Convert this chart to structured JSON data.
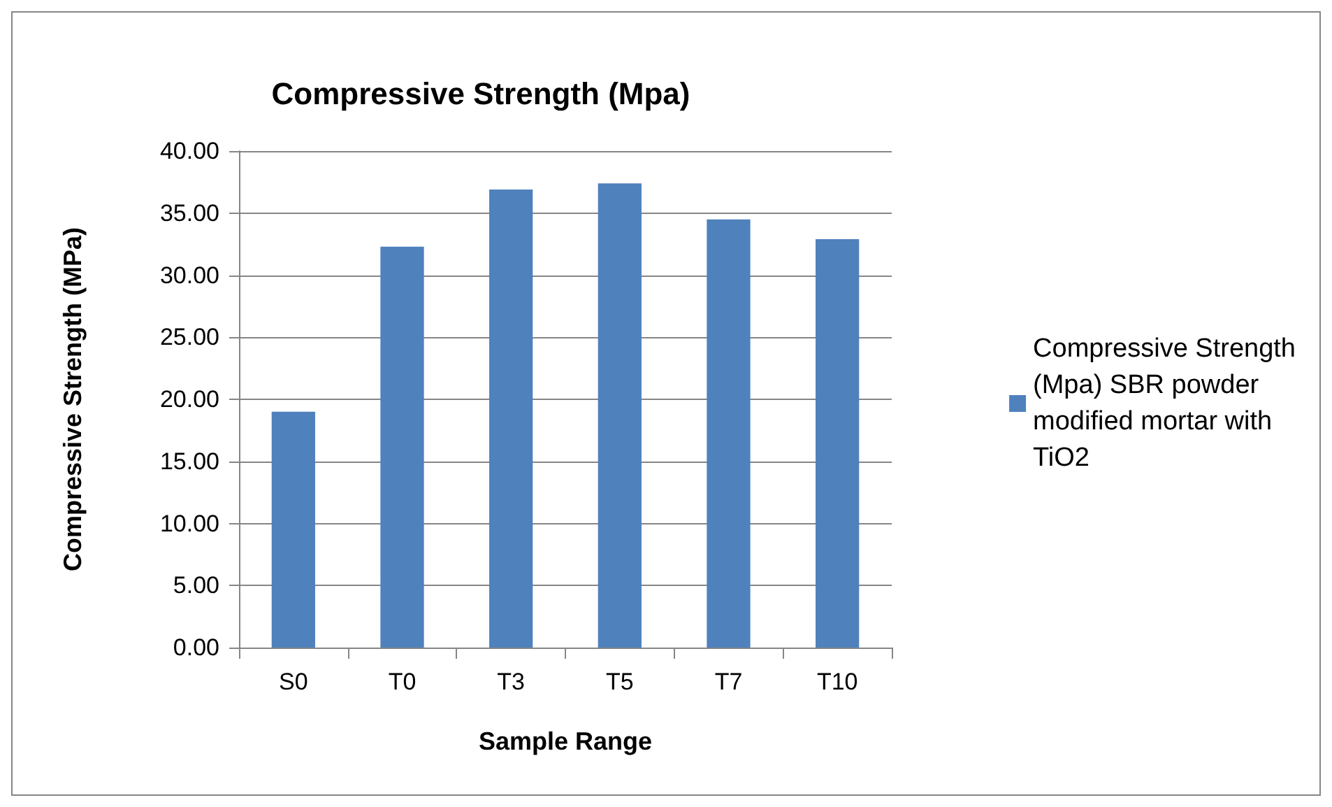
{
  "chart_data": {
    "type": "bar",
    "title": "Compressive Strength (Mpa)",
    "xlabel": "Sample Range",
    "ylabel": "Compressive Strength (MPa)",
    "categories": [
      "S0",
      "T0",
      "T3",
      "T5",
      "T7",
      "T10"
    ],
    "series": [
      {
        "name": "Compressive Strength (Mpa) SBR powder modified mortar with TiO2",
        "color": "#4f81bd",
        "values": [
          19.0,
          32.3,
          36.9,
          37.4,
          34.5,
          32.9
        ]
      }
    ],
    "ylim": [
      0,
      40
    ],
    "yticks": [
      {
        "value": 0,
        "label": "0.00"
      },
      {
        "value": 5,
        "label": "5.00"
      },
      {
        "value": 10,
        "label": "10.00"
      },
      {
        "value": 15,
        "label": "15.00"
      },
      {
        "value": 20,
        "label": "20.00"
      },
      {
        "value": 25,
        "label": "25.00"
      },
      {
        "value": 30,
        "label": "30.00"
      },
      {
        "value": 35,
        "label": "35.00"
      },
      {
        "value": 40,
        "label": "40.00"
      }
    ],
    "grid": "y",
    "legend": "right"
  }
}
